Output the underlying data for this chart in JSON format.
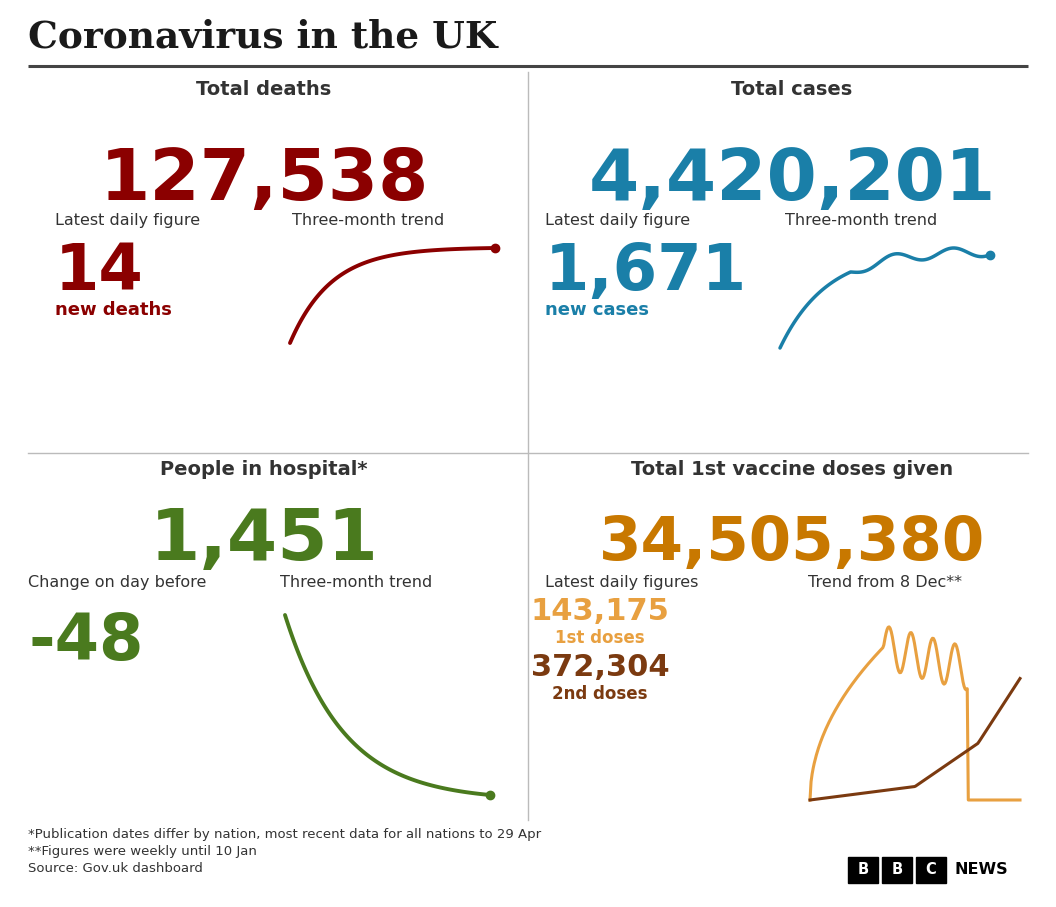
{
  "title": "Coronavirus in the UK",
  "bg_color": "#ffffff",
  "title_color": "#1a1a1a",
  "divider_color": "#444444",
  "grid_color": "#cccccc",
  "total_deaths_label": "Total deaths",
  "total_deaths_value": "127,538",
  "total_deaths_color": "#8b0000",
  "deaths_daily_label": "Latest daily figure",
  "deaths_trend_label": "Three-month trend",
  "deaths_daily_value": "14",
  "deaths_daily_sub": "new deaths",
  "total_cases_label": "Total cases",
  "total_cases_value": "4,420,201",
  "total_cases_color": "#1a7fa8",
  "cases_daily_label": "Latest daily figure",
  "cases_trend_label": "Three-month trend",
  "cases_daily_value": "1,671",
  "cases_daily_sub": "new cases",
  "hospital_label": "People in hospital*",
  "hospital_value": "1,451",
  "hospital_color": "#4a7a1e",
  "hospital_change_label": "Change on day before",
  "hospital_trend_label": "Three-month trend",
  "hospital_change_value": "-48",
  "vaccine_label": "Total 1st vaccine doses given",
  "vaccine_value": "34,505,380",
  "vaccine_color": "#c87800",
  "vaccine_daily_label": "Latest daily figures",
  "vaccine_trend_label": "Trend from 8 Dec**",
  "vaccine_dose1_value": "143,175",
  "vaccine_dose1_sub": "1st doses",
  "vaccine_dose1_color": "#e8a040",
  "vaccine_dose2_value": "372,304",
  "vaccine_dose2_sub": "2nd doses",
  "vaccine_dose2_color": "#7b3a10",
  "footnote1": "*Publication dates differ by nation, most recent data for all nations to 29 Apr",
  "footnote2": "**Figures were weekly until 10 Jan",
  "footnote3": "Source: Gov.uk dashboard",
  "label_color": "#333333",
  "sublabel_fontsize": 11.5,
  "footnote_fontsize": 9.5
}
